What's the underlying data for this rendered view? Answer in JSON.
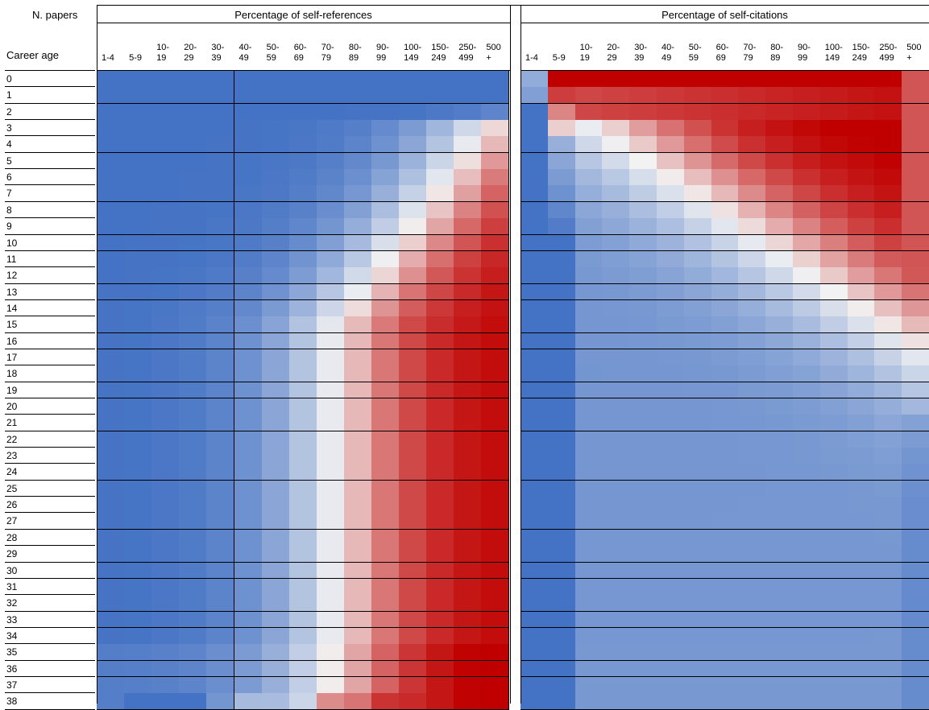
{
  "chart_data": [
    {
      "type": "heatmap",
      "title": "Percentage of self-references",
      "row_header": "N. papers",
      "col_header": "Career age",
      "columns": [
        "1-4",
        "5-9",
        "10-\n19",
        "20-\n29",
        "30-\n39",
        "40-\n49",
        "50-\n59",
        "60-\n69",
        "70-\n79",
        "80-\n89",
        "90-\n99",
        "100-\n149",
        "150-\n249",
        "250-\n499",
        "500\n+"
      ],
      "rows": [
        "0",
        "1",
        "2",
        "3",
        "4",
        "5",
        "6",
        "7",
        "8",
        "9",
        "10",
        "11",
        "12",
        "13",
        "14",
        "15",
        "16",
        "17",
        "18",
        "19",
        "20",
        "21",
        "22",
        "23",
        "24",
        "25",
        "26",
        "27",
        "28",
        "29",
        "30",
        "31",
        "32",
        "33",
        "34",
        "35",
        "36",
        "37",
        "38"
      ],
      "scale": "diverging: -1 = blue #4472C4, 0 = white, +1 = red #C00000",
      "values_note": "relative color intensity per cell",
      "values": "generated"
    },
    {
      "type": "heatmap",
      "title": "Percentage of self-citations",
      "columns": [
        "1-4",
        "5-9",
        "10-\n19",
        "20-\n29",
        "30-\n39",
        "40-\n49",
        "50-\n59",
        "60-\n69",
        "70-\n79",
        "80-\n89",
        "90-\n99",
        "100-\n149",
        "150-\n249",
        "250-\n499",
        "500\n+"
      ],
      "rows": [
        "0",
        "1",
        "2",
        "3",
        "4",
        "5",
        "6",
        "7",
        "8",
        "9",
        "10",
        "11",
        "12",
        "13",
        "14",
        "15",
        "16",
        "17",
        "18",
        "19",
        "20",
        "21",
        "22",
        "23",
        "24",
        "25",
        "26",
        "27",
        "28",
        "29",
        "30",
        "31",
        "32",
        "33",
        "34",
        "35",
        "36",
        "37",
        "38"
      ],
      "scale": "diverging: -1 = blue #4472C4, 0 = white, +1 = red #C00000",
      "values": "generated"
    }
  ],
  "colors": {
    "low": "#4472C4",
    "mid": "#F2F2F2",
    "high": "#C00000"
  }
}
